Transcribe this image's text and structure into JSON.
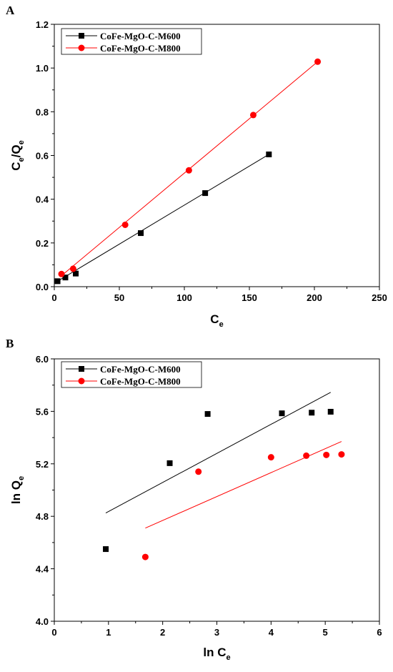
{
  "colors": {
    "series1": "#000000",
    "series2": "#ff0000"
  },
  "chart_data": [
    {
      "panel": "A",
      "type": "scatter",
      "xlabel_main": "C",
      "xlabel_sub": "e",
      "ylabel_parts": [
        "C",
        "e",
        "/Q",
        "e"
      ],
      "xlim": [
        0,
        250
      ],
      "ylim": [
        0,
        1.2
      ],
      "xticks": [
        "0",
        "50",
        "100",
        "150",
        "200",
        "250"
      ],
      "yticks": [
        "0.0",
        "0.2",
        "0.4",
        "0.6",
        "0.8",
        "1.0",
        "1.2"
      ],
      "legend_position": "top-left",
      "grid": false,
      "series": [
        {
          "name": "CoFe-MgO-C-M600",
          "marker": "square",
          "color": "#000000",
          "x": [
            2.5,
            8.5,
            16.5,
            66.5,
            116,
            165
          ],
          "y": [
            0.025,
            0.042,
            0.06,
            0.245,
            0.428,
            0.605
          ],
          "fit": {
            "x": [
              2.5,
              165
            ],
            "y": [
              0.025,
              0.605
            ]
          }
        },
        {
          "name": "CoFe-MgO-C-M800",
          "marker": "circle",
          "color": "#ff0000",
          "x": [
            5.5,
            14.5,
            54.5,
            103.5,
            153,
            202.5
          ],
          "y": [
            0.058,
            0.082,
            0.283,
            0.532,
            0.785,
            1.029
          ],
          "fit": {
            "x": [
              5.5,
              202.5
            ],
            "y": [
              0.05,
              1.029
            ]
          }
        }
      ]
    },
    {
      "panel": "B",
      "type": "scatter",
      "xlabel_main": "ln C",
      "xlabel_sub": "e",
      "ylabel_parts": [
        "ln Q",
        "e"
      ],
      "xlim": [
        0,
        6
      ],
      "ylim": [
        4.0,
        6.0
      ],
      "xticks": [
        "0",
        "1",
        "2",
        "3",
        "4",
        "5",
        "6"
      ],
      "yticks": [
        "4.0",
        "4.4",
        "4.8",
        "5.2",
        "5.6",
        "6.0"
      ],
      "legend_position": "top-left",
      "grid": false,
      "series": [
        {
          "name": "CoFe-MgO-C-M600",
          "marker": "square",
          "color": "#000000",
          "x": [
            0.95,
            2.13,
            2.83,
            4.2,
            4.75,
            5.1
          ],
          "y": [
            4.55,
            5.205,
            5.58,
            5.585,
            5.59,
            5.597
          ],
          "fit": {
            "x": [
              0.95,
              5.1
            ],
            "y": [
              4.825,
              5.745
            ]
          }
        },
        {
          "name": "CoFe-MgO-C-M800",
          "marker": "circle",
          "color": "#ff0000",
          "x": [
            1.68,
            2.66,
            4.0,
            4.65,
            5.02,
            5.3
          ],
          "y": [
            4.49,
            5.14,
            5.25,
            5.262,
            5.268,
            5.272
          ],
          "fit": {
            "x": [
              1.68,
              5.3
            ],
            "y": [
              4.71,
              5.37
            ]
          }
        }
      ]
    }
  ]
}
